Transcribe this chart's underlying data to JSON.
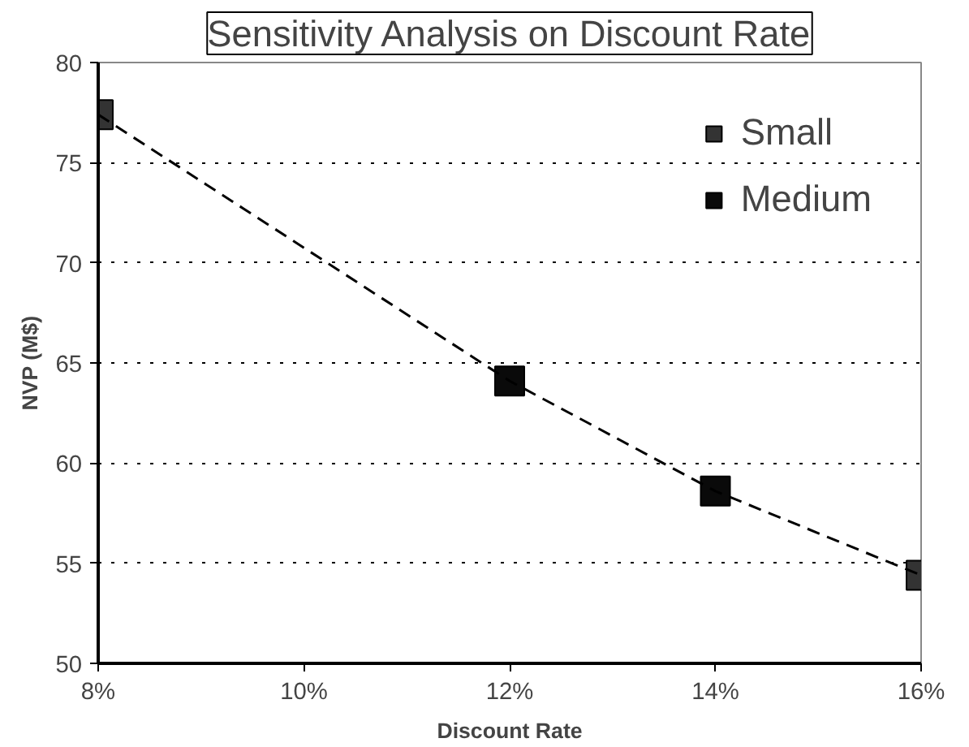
{
  "chart_data": {
    "type": "scatter",
    "title": "Sensitivity Analysis on Discount Rate",
    "xlabel": "Discount Rate",
    "ylabel": "NVP (M$)",
    "series": [
      {
        "name": "Small",
        "color": "#333333",
        "x": [
          8,
          16
        ],
        "values": [
          77.4,
          54.4
        ],
        "marker": "square"
      },
      {
        "name": "Medium",
        "color": "#0a0a0a",
        "x": [
          12,
          14
        ],
        "values": [
          64.1,
          58.6
        ],
        "marker": "square"
      },
      {
        "type": "line",
        "color": "#000000",
        "x": [
          8,
          12,
          14,
          16
        ],
        "values": [
          77.4,
          64.1,
          58.6,
          54.4
        ],
        "line_style": "dashed",
        "marker": "none"
      }
    ],
    "xlim": [
      8,
      16
    ],
    "xticks": [
      {
        "value": 8,
        "label": "8%"
      },
      {
        "value": 10,
        "label": "10%"
      },
      {
        "value": 12,
        "label": "12%"
      },
      {
        "value": 14,
        "label": "14%"
      },
      {
        "value": 16,
        "label": "16%"
      }
    ],
    "ylim": [
      50,
      80
    ],
    "yticks": [
      50,
      55,
      60,
      65,
      70,
      75,
      80
    ],
    "grid": "y",
    "legend": "top right"
  }
}
